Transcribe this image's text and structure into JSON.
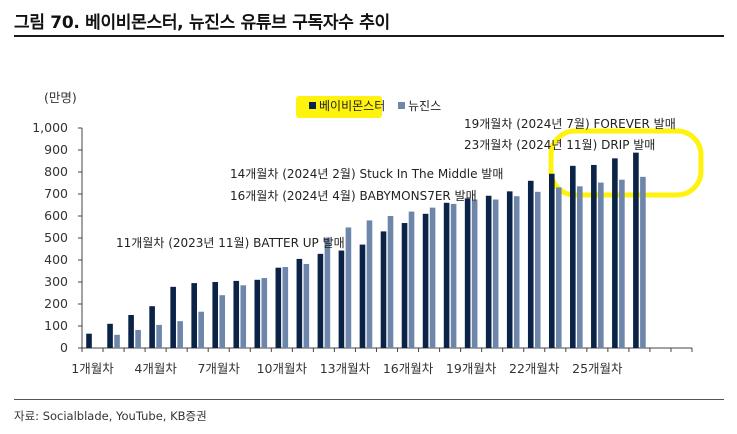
{
  "title": "그림 70. 베이비몬스터, 뉴진스 유튜브 구독자수 추이",
  "source": "자료: Socialblade, YouTube, KB증권",
  "chart_data": {
    "type": "bar",
    "ylabel": "(만명)",
    "ylim": [
      0,
      1000
    ],
    "yticks": [
      "0",
      "100",
      "200",
      "300",
      "400",
      "500",
      "600",
      "700",
      "800",
      "900",
      "1,000"
    ],
    "ytick_values": [
      0,
      100,
      200,
      300,
      400,
      500,
      600,
      700,
      800,
      900,
      1000
    ],
    "categories": [
      "1개월차",
      "2개월차",
      "3개월차",
      "4개월차",
      "5개월차",
      "6개월차",
      "7개월차",
      "8개월차",
      "9개월차",
      "10개월차",
      "11개월차",
      "12개월차",
      "13개월차",
      "14개월차",
      "15개월차",
      "16개월차",
      "17개월차",
      "18개월차",
      "19개월차",
      "20개월차",
      "21개월차",
      "22개월차",
      "23개월차",
      "24개월차",
      "25개월차",
      "26개월차",
      "27개월차",
      "28개월차",
      "29개월차"
    ],
    "xtick_labels": [
      "1개월차",
      "4개월차",
      "7개월차",
      "10개월차",
      "13개월차",
      "16개월차",
      "19개월차",
      "22개월차",
      "25개월차"
    ],
    "xtick_indices": [
      0,
      3,
      6,
      9,
      12,
      15,
      18,
      21,
      24
    ],
    "series": [
      {
        "name": "베이비몬스터",
        "color": "#0b2347",
        "values": [
          65,
          110,
          150,
          190,
          278,
          295,
          300,
          305,
          310,
          365,
          405,
          428,
          443,
          470,
          530,
          568,
          610,
          660,
          680,
          692,
          712,
          760,
          792,
          828,
          832,
          862,
          888,
          null,
          null
        ]
      },
      {
        "name": "뉴진스",
        "color": "#6f86ab",
        "values": [
          null,
          60,
          82,
          105,
          122,
          165,
          240,
          285,
          318,
          368,
          382,
          502,
          548,
          580,
          600,
          620,
          638,
          655,
          675,
          675,
          690,
          710,
          730,
          735,
          752,
          765,
          778,
          null,
          null
        ]
      }
    ],
    "annotations": [
      "11개월차 (2023년 11월) BATTER UP 발매",
      "14개월차 (2024년 2월) Stuck In The Middle 발매",
      "16개월차 (2024년 4월) BABYMONS7ER 발매",
      "19개월차 (2024년 7월) FOREVER 발매",
      "23개월차 (2024년 11월) DRIP 발매"
    ],
    "highlight_color": "#fff200"
  }
}
